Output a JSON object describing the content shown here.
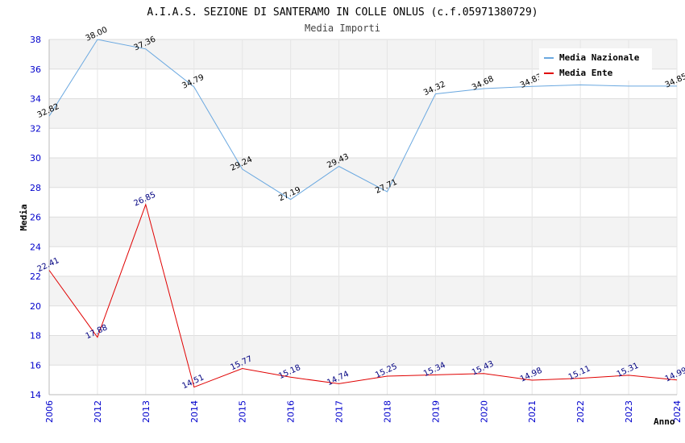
{
  "chart_data": {
    "type": "line",
    "title": "A.I.A.S. SEZIONE DI SANTERAMO IN COLLE ONLUS (c.f.05971380729)",
    "subtitle": "Media Importi",
    "xlabel": "Anno",
    "ylabel": "Media",
    "ylim": [
      14,
      38
    ],
    "ytick_step": 2,
    "grid": true,
    "legend_position": "top-right",
    "categories": [
      "2006",
      "2012",
      "2013",
      "2014",
      "2015",
      "2016",
      "2017",
      "2018",
      "2019",
      "2020",
      "2021",
      "2022",
      "2023",
      "2024"
    ],
    "series": [
      {
        "name": "Media Nazionale",
        "color": "#6aa8e0",
        "label_color": "#000000",
        "values": [
          32.82,
          38.0,
          37.36,
          34.79,
          29.24,
          27.19,
          29.43,
          27.71,
          34.32,
          34.68,
          34.83,
          34.93,
          34.85,
          34.85
        ],
        "labels": [
          "32.82",
          "38.00",
          "37.36",
          "34.79",
          "29.24",
          "27.19",
          "29.43",
          "27.71",
          "34.32",
          "34.68",
          "34.83",
          "",
          "",
          "34.85"
        ]
      },
      {
        "name": "Media Ente",
        "color": "#e00000",
        "label_color": "#000080",
        "values": [
          22.41,
          17.88,
          26.85,
          14.51,
          15.77,
          15.18,
          14.74,
          15.25,
          15.34,
          15.43,
          14.98,
          15.11,
          15.31,
          14.99
        ],
        "labels": [
          "22.41",
          "17.88",
          "26.85",
          "14.51",
          "15.77",
          "15.18",
          "14.74",
          "15.25",
          "15.34",
          "15.43",
          "14.98",
          "15.11",
          "15.31",
          "14.99"
        ]
      }
    ]
  }
}
